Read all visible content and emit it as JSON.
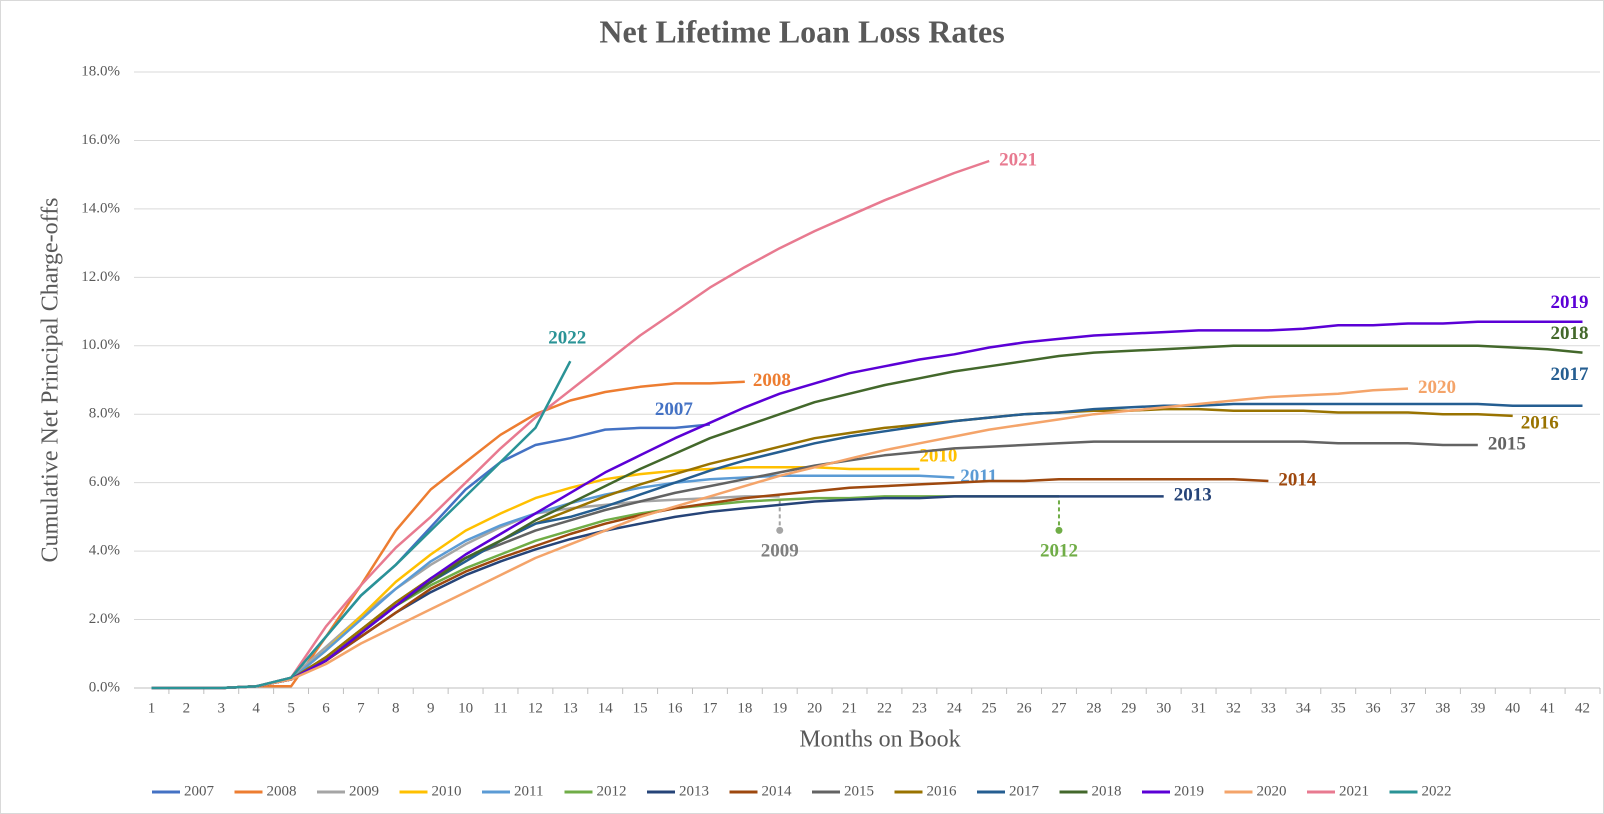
{
  "chart_data": {
    "type": "line",
    "title": "Net Lifetime Loan Loss Rates",
    "xlabel": "Months on Book",
    "ylabel": "Cumulative Net Principal Charge-offs",
    "categories": [
      1,
      2,
      3,
      4,
      5,
      6,
      7,
      8,
      9,
      10,
      11,
      12,
      13,
      14,
      15,
      16,
      17,
      18,
      19,
      20,
      21,
      22,
      23,
      24,
      25,
      26,
      27,
      28,
      29,
      30,
      31,
      32,
      33,
      34,
      35,
      36,
      37,
      38,
      39,
      40,
      41,
      42
    ],
    "ylim": [
      0,
      18
    ],
    "yticks": [
      {
        "value": 0,
        "label": "0.0%"
      },
      {
        "value": 2,
        "label": "2.0%"
      },
      {
        "value": 4,
        "label": "4.0%"
      },
      {
        "value": 6,
        "label": "6.0%"
      },
      {
        "value": 8,
        "label": "8.0%"
      },
      {
        "value": 10,
        "label": "10.0%"
      },
      {
        "value": 12,
        "label": "12.0%"
      },
      {
        "value": 14,
        "label": "14.0%"
      },
      {
        "value": 16,
        "label": "16.0%"
      },
      {
        "value": 18,
        "label": "18.0%"
      }
    ],
    "grid": true,
    "legend": "bottom",
    "series": [
      {
        "name": "2007",
        "color": "#4472c4",
        "values": [
          0,
          0,
          0,
          0.05,
          0.3,
          1.5,
          2.7,
          3.6,
          4.7,
          5.8,
          6.6,
          7.1,
          7.3,
          7.55,
          7.6,
          7.6,
          7.7,
          null,
          null,
          null,
          null,
          null,
          null,
          null,
          null,
          null,
          null,
          null,
          null,
          null,
          null,
          null,
          null,
          null,
          null,
          null,
          null,
          null,
          null,
          null,
          null,
          null
        ]
      },
      {
        "name": "2008",
        "color": "#ed7d31",
        "values": [
          0,
          0,
          0,
          0.05,
          0.05,
          1.5,
          3.0,
          4.6,
          5.8,
          6.6,
          7.4,
          8.0,
          8.4,
          8.65,
          8.8,
          8.9,
          8.9,
          8.95,
          null,
          null,
          null,
          null,
          null,
          null,
          null,
          null,
          null,
          null,
          null,
          null,
          null,
          null,
          null,
          null,
          null,
          null,
          null,
          null,
          null,
          null,
          null,
          null
        ]
      },
      {
        "name": "2009",
        "color": "#a5a5a5",
        "values": [
          0,
          0,
          0,
          0.05,
          0.3,
          1.2,
          2.1,
          2.9,
          3.6,
          4.2,
          4.7,
          5.1,
          5.25,
          5.35,
          5.45,
          5.5,
          5.55,
          5.6,
          5.6,
          null,
          null,
          null,
          null,
          null,
          null,
          null,
          null,
          null,
          null,
          null,
          null,
          null,
          null,
          null,
          null,
          null,
          null,
          null,
          null,
          null,
          null,
          null
        ]
      },
      {
        "name": "2010",
        "color": "#ffc000",
        "values": [
          0,
          0,
          0,
          0.05,
          0.25,
          1.1,
          2.1,
          3.1,
          3.9,
          4.6,
          5.1,
          5.55,
          5.85,
          6.1,
          6.25,
          6.35,
          6.4,
          6.45,
          6.45,
          6.45,
          6.4,
          6.4,
          6.4,
          null,
          null,
          null,
          null,
          null,
          null,
          null,
          null,
          null,
          null,
          null,
          null,
          null,
          null,
          null,
          null,
          null,
          null,
          null
        ]
      },
      {
        "name": "2011",
        "color": "#5b9bd5",
        "values": [
          0,
          0,
          0,
          0.05,
          0.25,
          1.1,
          2.0,
          2.9,
          3.7,
          4.3,
          4.75,
          5.1,
          5.4,
          5.65,
          5.85,
          6.0,
          6.1,
          6.15,
          6.2,
          6.2,
          6.2,
          6.2,
          6.2,
          6.15,
          null,
          null,
          null,
          null,
          null,
          null,
          null,
          null,
          null,
          null,
          null,
          null,
          null,
          null,
          null,
          null,
          null,
          null
        ]
      },
      {
        "name": "2012",
        "color": "#70ad47",
        "values": [
          0,
          0,
          0,
          0.05,
          0.25,
          0.9,
          1.7,
          2.4,
          3.0,
          3.5,
          3.9,
          4.3,
          4.6,
          4.9,
          5.1,
          5.25,
          5.35,
          5.45,
          5.5,
          5.55,
          5.55,
          5.6,
          5.6,
          5.6,
          5.6,
          5.6,
          5.6,
          null,
          null,
          null,
          null,
          null,
          null,
          null,
          null,
          null,
          null,
          null,
          null,
          null,
          null,
          null
        ]
      },
      {
        "name": "2013",
        "color": "#264478",
        "values": [
          0,
          0,
          0,
          0.05,
          0.25,
          0.8,
          1.5,
          2.2,
          2.8,
          3.3,
          3.7,
          4.05,
          4.35,
          4.6,
          4.8,
          5.0,
          5.15,
          5.25,
          5.35,
          5.45,
          5.5,
          5.55,
          5.55,
          5.6,
          5.6,
          5.6,
          5.6,
          5.6,
          5.6,
          5.6,
          null,
          null,
          null,
          null,
          null,
          null,
          null,
          null,
          null,
          null,
          null,
          null
        ]
      },
      {
        "name": "2014",
        "color": "#9e480e",
        "values": [
          0,
          0,
          0,
          0.05,
          0.25,
          0.8,
          1.5,
          2.2,
          2.9,
          3.4,
          3.8,
          4.15,
          4.5,
          4.8,
          5.05,
          5.25,
          5.4,
          5.55,
          5.65,
          5.75,
          5.85,
          5.9,
          5.95,
          6.0,
          6.05,
          6.05,
          6.1,
          6.1,
          6.1,
          6.1,
          6.1,
          6.1,
          6.05,
          null,
          null,
          null,
          null,
          null,
          null,
          null,
          null,
          null
        ]
      },
      {
        "name": "2015",
        "color": "#636363",
        "values": [
          0,
          0,
          0,
          0.05,
          0.25,
          0.9,
          1.7,
          2.5,
          3.2,
          3.8,
          4.2,
          4.6,
          4.9,
          5.2,
          5.45,
          5.7,
          5.9,
          6.1,
          6.3,
          6.5,
          6.65,
          6.8,
          6.9,
          7.0,
          7.05,
          7.1,
          7.15,
          7.2,
          7.2,
          7.2,
          7.2,
          7.2,
          7.2,
          7.2,
          7.15,
          7.15,
          7.15,
          7.1,
          7.1,
          null,
          null,
          null
        ]
      },
      {
        "name": "2016",
        "color": "#997300",
        "values": [
          0,
          0,
          0,
          0.05,
          0.25,
          0.9,
          1.7,
          2.5,
          3.2,
          3.8,
          4.3,
          4.8,
          5.2,
          5.6,
          5.95,
          6.25,
          6.55,
          6.8,
          7.05,
          7.3,
          7.45,
          7.6,
          7.7,
          7.8,
          7.9,
          8.0,
          8.05,
          8.1,
          8.1,
          8.15,
          8.15,
          8.1,
          8.1,
          8.1,
          8.05,
          8.05,
          8.05,
          8.0,
          8.0,
          7.95,
          null,
          null
        ]
      },
      {
        "name": "2017",
        "color": "#255e91",
        "values": [
          0,
          0,
          0,
          0.05,
          0.25,
          0.8,
          1.6,
          2.4,
          3.1,
          3.7,
          4.3,
          4.8,
          5.0,
          5.3,
          5.65,
          6.0,
          6.35,
          6.65,
          6.9,
          7.15,
          7.35,
          7.5,
          7.65,
          7.8,
          7.9,
          8.0,
          8.05,
          8.15,
          8.2,
          8.25,
          8.25,
          8.3,
          8.3,
          8.3,
          8.3,
          8.3,
          8.3,
          8.3,
          8.3,
          8.25,
          8.25,
          8.25
        ]
      },
      {
        "name": "2018",
        "color": "#43682b",
        "values": [
          0,
          0,
          0,
          0.05,
          0.25,
          0.8,
          1.6,
          2.4,
          3.1,
          3.8,
          4.3,
          4.9,
          5.4,
          5.9,
          6.4,
          6.85,
          7.3,
          7.65,
          8.0,
          8.35,
          8.6,
          8.85,
          9.05,
          9.25,
          9.4,
          9.55,
          9.7,
          9.8,
          9.85,
          9.9,
          9.95,
          10.0,
          10.0,
          10.0,
          10.0,
          10.0,
          10.0,
          10.0,
          10.0,
          9.95,
          9.9,
          9.8
        ]
      },
      {
        "name": "2019",
        "color": "#5b00d6",
        "values": [
          0,
          0,
          0,
          0.05,
          0.25,
          0.8,
          1.6,
          2.4,
          3.2,
          3.9,
          4.5,
          5.1,
          5.7,
          6.3,
          6.8,
          7.3,
          7.75,
          8.2,
          8.6,
          8.9,
          9.2,
          9.4,
          9.6,
          9.75,
          9.95,
          10.1,
          10.2,
          10.3,
          10.35,
          10.4,
          10.45,
          10.45,
          10.45,
          10.5,
          10.6,
          10.6,
          10.65,
          10.65,
          10.7,
          10.7,
          10.7,
          10.7
        ]
      },
      {
        "name": "2020",
        "color": "#f4a46a",
        "values": [
          0,
          0,
          0,
          0.05,
          0.25,
          0.7,
          1.3,
          1.8,
          2.3,
          2.8,
          3.3,
          3.8,
          4.2,
          4.6,
          5.0,
          5.3,
          5.6,
          5.9,
          6.2,
          6.45,
          6.7,
          6.95,
          7.15,
          7.35,
          7.55,
          7.7,
          7.85,
          8.0,
          8.1,
          8.2,
          8.3,
          8.4,
          8.5,
          8.55,
          8.6,
          8.7,
          8.75,
          null,
          null,
          null,
          null,
          null
        ]
      },
      {
        "name": "2021",
        "color": "#e87a90",
        "values": [
          0,
          0,
          0,
          0.05,
          0.3,
          1.8,
          3.0,
          4.1,
          5.0,
          6.0,
          7.0,
          7.9,
          8.7,
          9.5,
          10.3,
          11.0,
          11.7,
          12.3,
          12.85,
          13.35,
          13.8,
          14.25,
          14.65,
          15.05,
          15.4,
          null,
          null,
          null,
          null,
          null,
          null,
          null,
          null,
          null,
          null,
          null,
          null,
          null,
          null,
          null,
          null,
          null
        ]
      },
      {
        "name": "2022",
        "color": "#2a9396",
        "values": [
          0,
          0,
          0,
          0.05,
          0.3,
          1.5,
          2.7,
          3.6,
          4.6,
          5.6,
          6.6,
          7.6,
          9.55,
          null,
          null,
          null,
          null,
          null,
          null,
          null,
          null,
          null,
          null,
          null,
          null,
          null,
          null,
          null,
          null,
          null,
          null,
          null,
          null,
          null,
          null,
          null,
          null,
          null,
          null,
          null,
          null,
          null
        ]
      }
    ]
  }
}
